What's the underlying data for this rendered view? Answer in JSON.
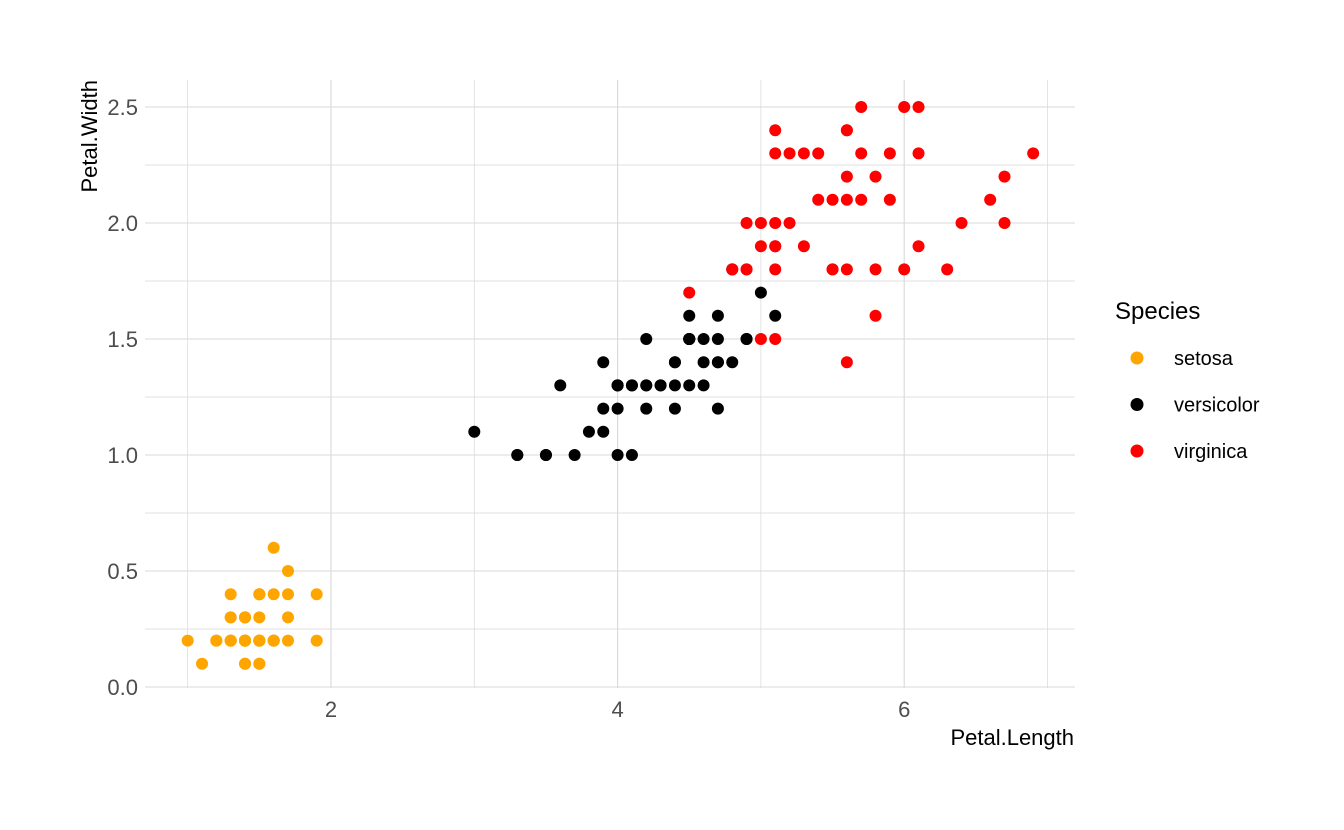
{
  "chart_data": {
    "type": "scatter",
    "title": "",
    "xlabel": "Petal.Length",
    "ylabel": "Petal.Width",
    "xlim": [
      0.7,
      7.2
    ],
    "ylim": [
      0,
      2.6
    ],
    "x_ticks": [
      2,
      4,
      6
    ],
    "x_tick_labels": [
      "2",
      "4",
      "6"
    ],
    "y_ticks": [
      0,
      0.5,
      1.0,
      1.5,
      2.0,
      2.5
    ],
    "y_tick_labels": [
      "0.0",
      "0.5",
      "1.0",
      "1.5",
      "2.0",
      "2.5"
    ],
    "grid": true,
    "legend": {
      "title": "Species",
      "position": "right"
    },
    "series": [
      {
        "name": "setosa",
        "color": "#FFA500",
        "points": [
          [
            1.4,
            0.2
          ],
          [
            1.4,
            0.2
          ],
          [
            1.3,
            0.2
          ],
          [
            1.5,
            0.2
          ],
          [
            1.4,
            0.2
          ],
          [
            1.7,
            0.4
          ],
          [
            1.4,
            0.3
          ],
          [
            1.5,
            0.2
          ],
          [
            1.4,
            0.2
          ],
          [
            1.5,
            0.1
          ],
          [
            1.5,
            0.2
          ],
          [
            1.6,
            0.2
          ],
          [
            1.4,
            0.1
          ],
          [
            1.1,
            0.1
          ],
          [
            1.2,
            0.2
          ],
          [
            1.5,
            0.4
          ],
          [
            1.3,
            0.4
          ],
          [
            1.4,
            0.3
          ],
          [
            1.7,
            0.3
          ],
          [
            1.5,
            0.3
          ],
          [
            1.7,
            0.2
          ],
          [
            1.5,
            0.4
          ],
          [
            1.0,
            0.2
          ],
          [
            1.7,
            0.5
          ],
          [
            1.9,
            0.2
          ],
          [
            1.6,
            0.2
          ],
          [
            1.6,
            0.4
          ],
          [
            1.5,
            0.2
          ],
          [
            1.4,
            0.2
          ],
          [
            1.6,
            0.2
          ],
          [
            1.6,
            0.2
          ],
          [
            1.5,
            0.4
          ],
          [
            1.5,
            0.1
          ],
          [
            1.4,
            0.2
          ],
          [
            1.5,
            0.2
          ],
          [
            1.2,
            0.2
          ],
          [
            1.3,
            0.2
          ],
          [
            1.4,
            0.1
          ],
          [
            1.3,
            0.2
          ],
          [
            1.5,
            0.2
          ],
          [
            1.3,
            0.3
          ],
          [
            1.3,
            0.3
          ],
          [
            1.3,
            0.2
          ],
          [
            1.6,
            0.6
          ],
          [
            1.9,
            0.4
          ],
          [
            1.4,
            0.3
          ],
          [
            1.6,
            0.2
          ],
          [
            1.4,
            0.2
          ],
          [
            1.5,
            0.2
          ],
          [
            1.4,
            0.2
          ]
        ]
      },
      {
        "name": "versicolor",
        "color": "#000000",
        "points": [
          [
            4.7,
            1.4
          ],
          [
            4.5,
            1.5
          ],
          [
            4.9,
            1.5
          ],
          [
            4.0,
            1.3
          ],
          [
            4.6,
            1.5
          ],
          [
            4.5,
            1.3
          ],
          [
            4.7,
            1.6
          ],
          [
            3.3,
            1.0
          ],
          [
            4.6,
            1.3
          ],
          [
            3.9,
            1.4
          ],
          [
            3.5,
            1.0
          ],
          [
            4.2,
            1.5
          ],
          [
            4.0,
            1.0
          ],
          [
            4.7,
            1.4
          ],
          [
            3.6,
            1.3
          ],
          [
            4.4,
            1.4
          ],
          [
            4.5,
            1.5
          ],
          [
            4.1,
            1.0
          ],
          [
            4.5,
            1.5
          ],
          [
            3.9,
            1.1
          ],
          [
            4.8,
            1.8
          ],
          [
            4.0,
            1.3
          ],
          [
            4.9,
            1.5
          ],
          [
            4.7,
            1.2
          ],
          [
            4.3,
            1.3
          ],
          [
            4.4,
            1.4
          ],
          [
            4.8,
            1.4
          ],
          [
            5.0,
            1.7
          ],
          [
            4.5,
            1.5
          ],
          [
            3.5,
            1.0
          ],
          [
            3.8,
            1.1
          ],
          [
            3.7,
            1.0
          ],
          [
            3.9,
            1.2
          ],
          [
            5.1,
            1.6
          ],
          [
            4.5,
            1.5
          ],
          [
            4.5,
            1.6
          ],
          [
            4.7,
            1.5
          ],
          [
            4.4,
            1.3
          ],
          [
            4.1,
            1.3
          ],
          [
            4.0,
            1.3
          ],
          [
            4.4,
            1.2
          ],
          [
            4.6,
            1.4
          ],
          [
            4.0,
            1.2
          ],
          [
            3.3,
            1.0
          ],
          [
            4.2,
            1.3
          ],
          [
            4.2,
            1.2
          ],
          [
            4.2,
            1.3
          ],
          [
            4.3,
            1.3
          ],
          [
            3.0,
            1.1
          ],
          [
            4.1,
            1.3
          ]
        ]
      },
      {
        "name": "virginica",
        "color": "#FF0000",
        "points": [
          [
            6.0,
            2.5
          ],
          [
            5.1,
            1.9
          ],
          [
            5.9,
            2.1
          ],
          [
            5.6,
            1.8
          ],
          [
            5.8,
            2.2
          ],
          [
            6.6,
            2.1
          ],
          [
            4.5,
            1.7
          ],
          [
            6.3,
            1.8
          ],
          [
            5.8,
            1.8
          ],
          [
            6.1,
            2.5
          ],
          [
            5.1,
            2.0
          ],
          [
            5.3,
            1.9
          ],
          [
            5.5,
            2.1
          ],
          [
            5.0,
            2.0
          ],
          [
            5.1,
            2.4
          ],
          [
            5.3,
            2.3
          ],
          [
            5.5,
            1.8
          ],
          [
            6.7,
            2.2
          ],
          [
            6.9,
            2.3
          ],
          [
            5.0,
            1.5
          ],
          [
            5.7,
            2.3
          ],
          [
            4.9,
            2.0
          ],
          [
            6.7,
            2.0
          ],
          [
            4.9,
            1.8
          ],
          [
            5.7,
            2.1
          ],
          [
            6.0,
            1.8
          ],
          [
            4.8,
            1.8
          ],
          [
            4.9,
            1.8
          ],
          [
            5.6,
            2.1
          ],
          [
            5.8,
            1.6
          ],
          [
            6.1,
            1.9
          ],
          [
            6.4,
            2.0
          ],
          [
            5.6,
            2.2
          ],
          [
            5.1,
            1.5
          ],
          [
            5.6,
            1.4
          ],
          [
            6.1,
            2.3
          ],
          [
            5.6,
            2.4
          ],
          [
            5.5,
            1.8
          ],
          [
            4.8,
            1.8
          ],
          [
            5.4,
            2.1
          ],
          [
            5.6,
            2.4
          ],
          [
            5.1,
            2.3
          ],
          [
            5.1,
            1.9
          ],
          [
            5.9,
            2.3
          ],
          [
            5.7,
            2.5
          ],
          [
            5.2,
            2.3
          ],
          [
            5.0,
            1.9
          ],
          [
            5.2,
            2.0
          ],
          [
            5.4,
            2.3
          ],
          [
            5.1,
            1.8
          ]
        ]
      }
    ]
  }
}
